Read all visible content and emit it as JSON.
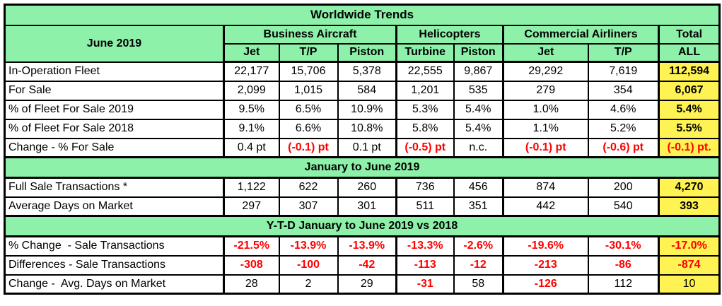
{
  "chart_data": {
    "type": "table",
    "title": "Worldwide Trends",
    "period_label": "June 2019",
    "column_groups": [
      {
        "label": "Business Aircraft",
        "cols": [
          "Jet",
          "T/P",
          "Piston"
        ]
      },
      {
        "label": "Helicopters",
        "cols": [
          "Turbine",
          "Piston"
        ]
      },
      {
        "label": "Commercial Airliners",
        "cols": [
          "Jet",
          "T/P"
        ]
      },
      {
        "label": "Total",
        "cols": [
          "ALL"
        ]
      }
    ],
    "sections": [
      {
        "header": null,
        "rows": [
          {
            "label": "In-Operation Fleet",
            "values": [
              "22,177",
              "15,706",
              "5,378",
              "22,555",
              "9,867",
              "29,292",
              "7,619"
            ],
            "red": [
              0,
              0,
              0,
              0,
              0,
              0,
              0
            ],
            "total": {
              "text": "112,594",
              "red": false,
              "bold": true
            }
          },
          {
            "label": "For Sale",
            "values": [
              "2,099",
              "1,015",
              "584",
              "1,201",
              "535",
              "279",
              "354"
            ],
            "red": [
              0,
              0,
              0,
              0,
              0,
              0,
              0
            ],
            "total": {
              "text": "6,067",
              "red": false,
              "bold": true
            }
          },
          {
            "label": "% of Fleet For Sale 2019",
            "values": [
              "9.5%",
              "6.5%",
              "10.9%",
              "5.3%",
              "5.4%",
              "1.0%",
              "4.6%"
            ],
            "red": [
              0,
              0,
              0,
              0,
              0,
              0,
              0
            ],
            "total": {
              "text": "5.4%",
              "red": false,
              "bold": true
            }
          },
          {
            "label": "% of Fleet For Sale 2018",
            "values": [
              "9.1%",
              "6.6%",
              "10.8%",
              "5.8%",
              "5.4%",
              "1.1%",
              "5.2%"
            ],
            "red": [
              0,
              0,
              0,
              0,
              0,
              0,
              0
            ],
            "total": {
              "text": "5.5%",
              "red": false,
              "bold": true
            }
          },
          {
            "label": "Change - % For Sale",
            "values": [
              "0.4 pt",
              "(-0.1) pt",
              "0.1 pt",
              "(-0.5) pt",
              "n.c.",
              "(-0.1) pt",
              "(-0.6) pt"
            ],
            "red": [
              0,
              1,
              0,
              1,
              0,
              1,
              1
            ],
            "total": {
              "text": "(-0.1) pt.",
              "red": true,
              "bold": true
            }
          }
        ]
      },
      {
        "header": "January to June 2019",
        "rows": [
          {
            "label": "Full Sale Transactions *",
            "values": [
              "1,122",
              "622",
              "260",
              "736",
              "456",
              "874",
              "200"
            ],
            "red": [
              0,
              0,
              0,
              0,
              0,
              0,
              0
            ],
            "total": {
              "text": "4,270",
              "red": false,
              "bold": true
            }
          },
          {
            "label": "Average Days on Market",
            "values": [
              "297",
              "307",
              "301",
              "511",
              "351",
              "442",
              "540"
            ],
            "red": [
              0,
              0,
              0,
              0,
              0,
              0,
              0
            ],
            "total": {
              "text": "393",
              "red": false,
              "bold": true
            }
          }
        ]
      },
      {
        "header": "Y-T-D January to June 2019 vs 2018",
        "rows": [
          {
            "label": "% Change  - Sale Transactions",
            "values": [
              "-21.5%",
              "-13.9%",
              "-13.9%",
              "-13.3%",
              "-2.6%",
              "-19.6%",
              "-30.1%"
            ],
            "red": [
              1,
              1,
              1,
              1,
              1,
              1,
              1
            ],
            "total": {
              "text": "-17.0%",
              "red": true,
              "bold": true
            }
          },
          {
            "label": "Differences - Sale Transactions",
            "values": [
              "-308",
              "-100",
              "-42",
              "-113",
              "-12",
              "-213",
              "-86"
            ],
            "red": [
              1,
              1,
              1,
              1,
              1,
              1,
              1
            ],
            "total": {
              "text": "-874",
              "red": true,
              "bold": true
            }
          },
          {
            "label": "Change -  Avg. Days on Market",
            "values": [
              "28",
              "2",
              "29",
              "-31",
              "58",
              "-126",
              "112"
            ],
            "red": [
              0,
              0,
              0,
              1,
              0,
              1,
              0
            ],
            "total": {
              "text": "10",
              "red": false,
              "bold": false
            }
          }
        ]
      }
    ],
    "colors": {
      "green": "#8DF1A9",
      "yellow": "#FFF354",
      "red": "#FF0000",
      "border": "#000000",
      "background": "#FFFFFF"
    }
  }
}
